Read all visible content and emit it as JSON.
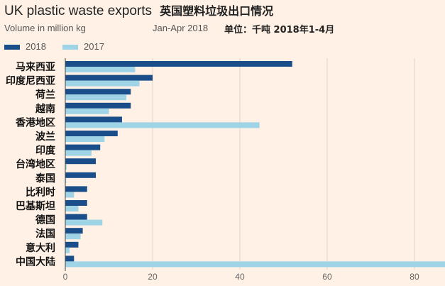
{
  "header": {
    "title_en": "UK plastic waste exports",
    "title_cn": "英国塑料垃圾出口情况",
    "subtitle": "Volume in million kg",
    "period": "Jan-Apr 2018",
    "unit_cn": "单位：千吨  2018年1-4月"
  },
  "colors": {
    "s2018": "#1a4e8a",
    "s2017": "#9fd3e6",
    "grid": "#e0d3c6",
    "axis": "#444444"
  },
  "chart_data": {
    "type": "bar",
    "orientation": "horizontal",
    "categories": [
      "马来西亚",
      "印度尼西亚",
      "荷兰",
      "越南",
      "香港地区",
      "波兰",
      "印度",
      "台湾地区",
      "泰国",
      "比利时",
      "巴基斯坦",
      "德国",
      "法国",
      "意大利",
      "中国大陆"
    ],
    "series": [
      {
        "name": "2018",
        "values": [
          52,
          20,
          15,
          15,
          13,
          12,
          8,
          7,
          7,
          5,
          5,
          5,
          4,
          3,
          2
        ]
      },
      {
        "name": "2017",
        "values": [
          16,
          17,
          14,
          10,
          44.5,
          9,
          6,
          0.3,
          0.2,
          2,
          3,
          8.5,
          3.5,
          1,
          87
        ]
      }
    ],
    "x_ticks": [
      0,
      20,
      40,
      60,
      80
    ],
    "xlim": [
      0,
      87
    ],
    "legend_position": "top-left",
    "grid": true
  }
}
